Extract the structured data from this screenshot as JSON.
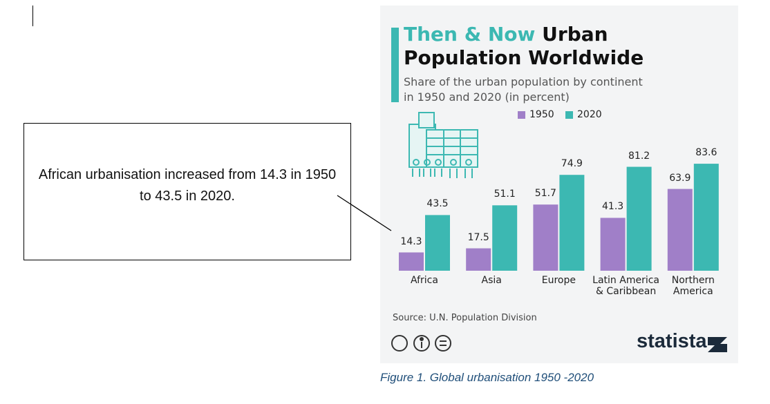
{
  "chart_data": {
    "type": "bar",
    "title_highlight": "Then & Now",
    "title": "Urban Population Worldwide",
    "subtitle": "Share of the urban population by continent in 1950 and 2020 (in percent)",
    "categories": [
      "Africa",
      "Asia",
      "Europe",
      "Latin America & Caribbean",
      "Northern America"
    ],
    "series": [
      {
        "name": "1950",
        "color": "#a07fc8",
        "values": [
          14.3,
          17.5,
          51.7,
          41.3,
          63.9
        ]
      },
      {
        "name": "2020",
        "color": "#3cb8b2",
        "values": [
          43.5,
          51.1,
          74.9,
          81.2,
          83.6
        ]
      }
    ],
    "source": "Source: U.N. Population Division",
    "logo": "statista"
  },
  "callout": "African urbanisation increased from 14.3 in 1950 to 43.5 in 2020.",
  "caption": "Figure 1. Global urbanisation 1950 -2020"
}
